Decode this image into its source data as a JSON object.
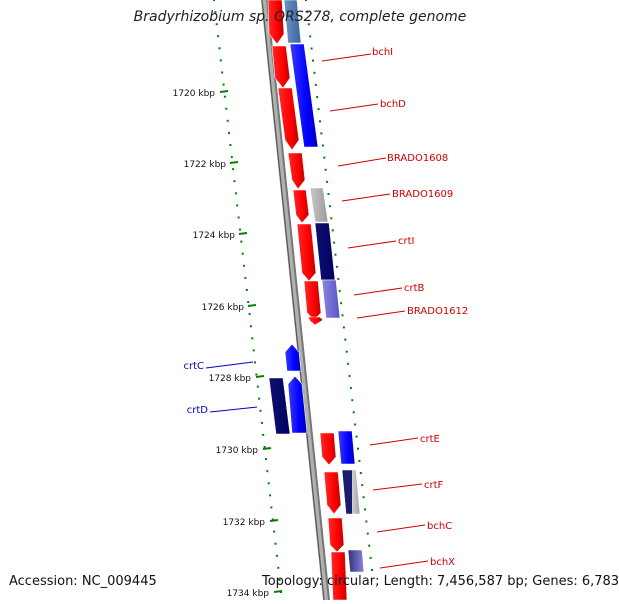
{
  "title": "Bradyrhizobium sp. ORS278, complete genome",
  "footer": {
    "accession": "Accession: NC_009445",
    "summary": "Topology: circular; Length: 7,456,587 bp; Genes: 6,783"
  },
  "colors": {
    "forward_gene": "#ff0000",
    "reverse_gene": "#0000ff",
    "right_label": "#cc0000",
    "left_label": "#0000cc",
    "tick": "#008000",
    "backbone": "#888888"
  },
  "ticks": [
    {
      "label": "1720 kbp"
    },
    {
      "label": "1722 kbp"
    },
    {
      "label": "1724 kbp"
    },
    {
      "label": "1726 kbp"
    },
    {
      "label": "1728 kbp"
    },
    {
      "label": "1730 kbp"
    },
    {
      "label": "1732 kbp"
    },
    {
      "label": "1734 kbp"
    }
  ],
  "gene_labels_right": [
    {
      "name": "bchI"
    },
    {
      "name": "bchD"
    },
    {
      "name": "BRADO1608"
    },
    {
      "name": "BRADO1609"
    },
    {
      "name": "crtI"
    },
    {
      "name": "crtB"
    },
    {
      "name": "BRADO1612"
    },
    {
      "name": "crtE"
    },
    {
      "name": "crtF"
    },
    {
      "name": "bchC"
    },
    {
      "name": "bchX"
    }
  ],
  "gene_labels_left": [
    {
      "name": "crtC"
    },
    {
      "name": "crtD"
    }
  ]
}
